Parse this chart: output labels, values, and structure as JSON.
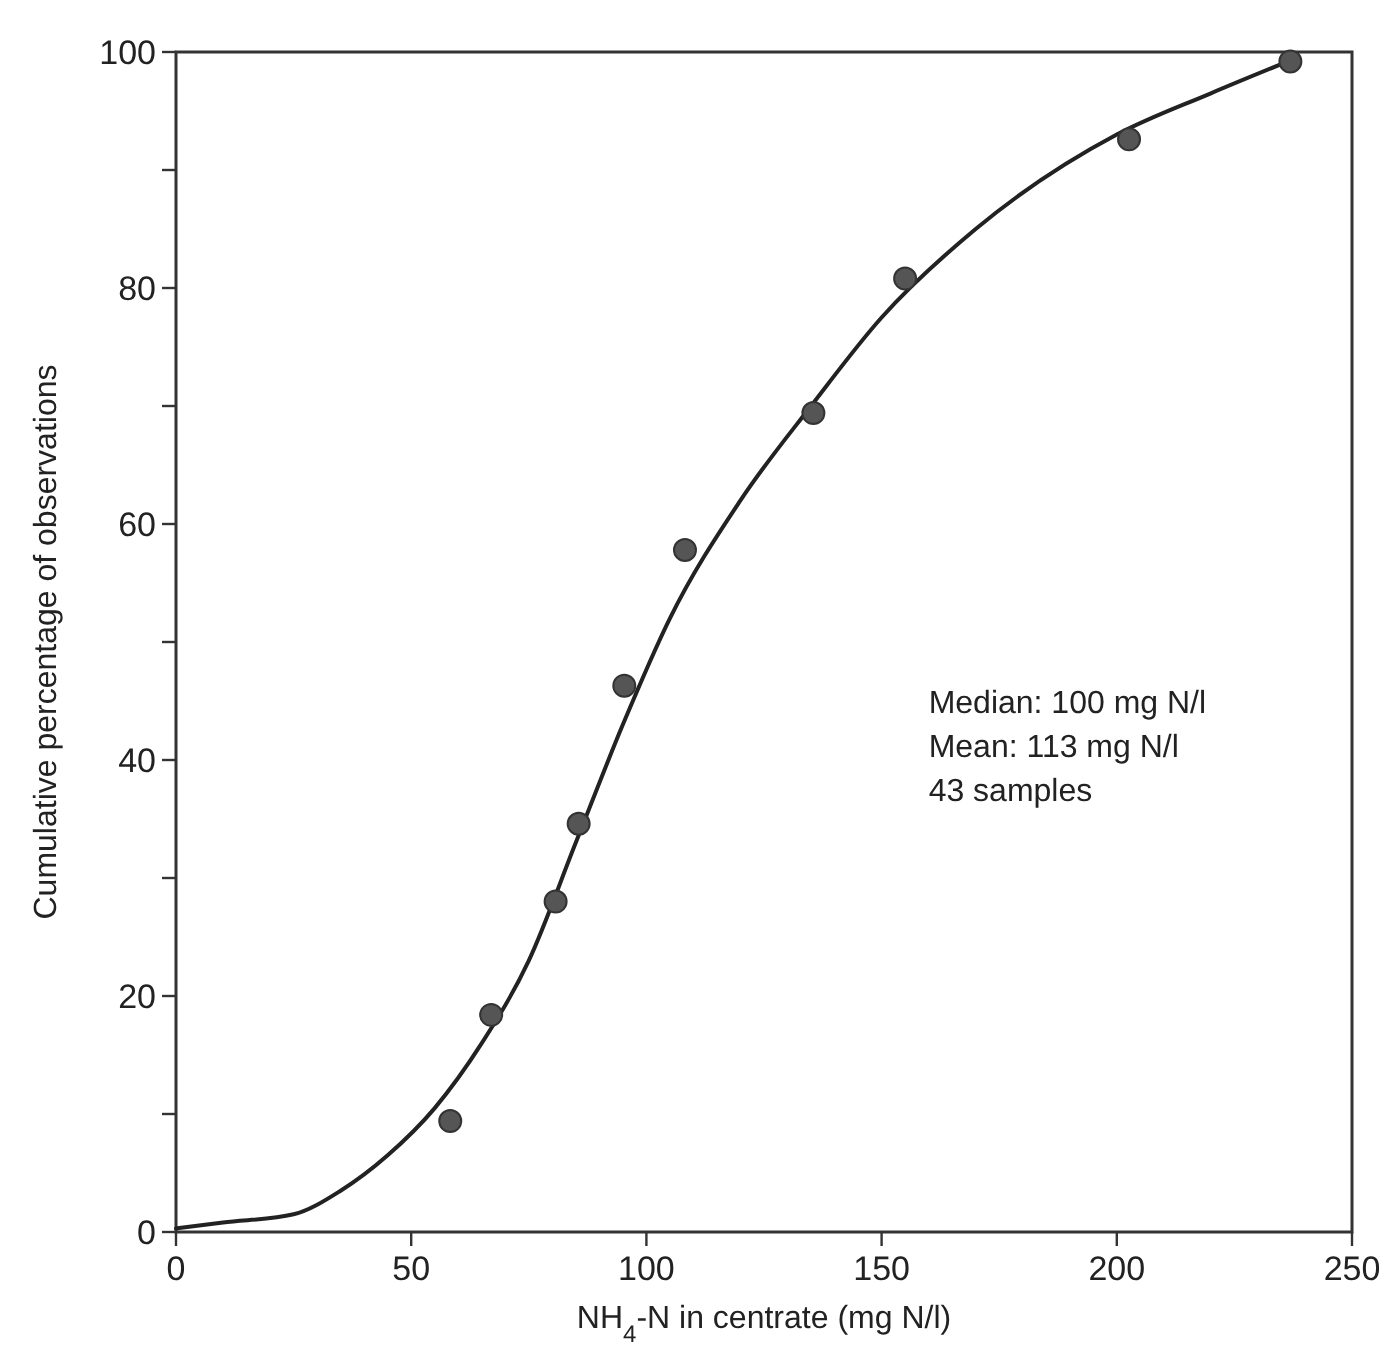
{
  "chart_data": {
    "type": "scatter",
    "xlabel": "NH$_{4}$-N in centrate (mg N/l)",
    "ylabel": "Cumulative percentage of observations",
    "xlim": [
      0,
      250
    ],
    "xticks": [
      0,
      50,
      100,
      150,
      200,
      250
    ],
    "ylim": [
      0,
      100
    ],
    "yticks": [
      0,
      {
        "value": 10,
        "label": null
      },
      20,
      {
        "value": 30,
        "label": null
      },
      40,
      {
        "value": 50,
        "label": null
      },
      60,
      {
        "value": 70,
        "label": null
      },
      80,
      {
        "value": 90,
        "label": null
      },
      100
    ],
    "grid": false,
    "marker": "circle",
    "series": [
      {
        "color": "#555555",
        "x": [
          58.3,
          67,
          80.7,
          85.6,
          95.3,
          108.2,
          135.5,
          155,
          202.6,
          236.9
        ],
        "values": [
          9.4,
          18.4,
          28,
          34.6,
          46.3,
          57.8,
          69.4,
          80.8,
          92.6,
          99.2
        ]
      },
      {
        "type": "line",
        "color": "#222222",
        "line_style": "solid",
        "marker": "none",
        "x": [
          0,
          10,
          25,
          35,
          45,
          55,
          65,
          75,
          85,
          95,
          105,
          120,
          135,
          150,
          170,
          200,
          220,
          237
        ],
        "values": [
          0.3,
          0.8,
          1.5,
          3.5,
          6.5,
          10.5,
          16,
          23,
          33,
          43,
          52,
          62,
          70,
          77.5,
          85,
          93,
          96.5,
          99.3
        ]
      }
    ],
    "annotations": [
      "Median:  100 mg N/l",
      "Mean:  113 mg N/l",
      "43 samples"
    ]
  }
}
